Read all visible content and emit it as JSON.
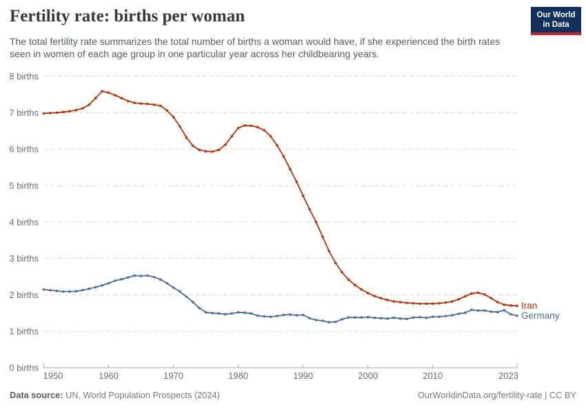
{
  "header": {
    "title": "Fertility rate: births per woman",
    "subtitle": "The total fertility rate summarizes the total number of births a woman would have, if she experienced the birth rates seen in women of each age group in one particular year across her childbearing years."
  },
  "logo": {
    "line1": "Our World",
    "line2": "in Data",
    "bg_color": "#12305c",
    "stripe_color": "#c2262e"
  },
  "chart_data": {
    "type": "line",
    "title": "Fertility rate: births per woman",
    "xlabel": "",
    "ylabel": "births",
    "xlim": [
      1950,
      2023
    ],
    "ylim": [
      0,
      8
    ],
    "grid": "horizontal-dashed",
    "legend_position": "line-end-labels",
    "x_ticks": {
      "years": [
        1950,
        1960,
        1970,
        1980,
        1990,
        2000,
        2010,
        2023
      ],
      "labels": [
        "1950",
        "1960",
        "1970",
        "1980",
        "1990",
        "2000",
        "2010",
        "2023"
      ]
    },
    "y_ticks": {
      "values": [
        0,
        1,
        2,
        3,
        4,
        5,
        6,
        7,
        8
      ],
      "labels": [
        "0 births",
        "1 births",
        "2 births",
        "3 births",
        "4 births",
        "5 births",
        "6 births",
        "7 births",
        "8 births"
      ]
    },
    "x": [
      1950,
      1951,
      1952,
      1953,
      1954,
      1955,
      1956,
      1957,
      1958,
      1959,
      1960,
      1961,
      1962,
      1963,
      1964,
      1965,
      1966,
      1967,
      1968,
      1969,
      1970,
      1971,
      1972,
      1973,
      1974,
      1975,
      1976,
      1977,
      1978,
      1979,
      1980,
      1981,
      1982,
      1983,
      1984,
      1985,
      1986,
      1987,
      1988,
      1989,
      1990,
      1991,
      1992,
      1993,
      1994,
      1995,
      1996,
      1997,
      1998,
      1999,
      2000,
      2001,
      2002,
      2003,
      2004,
      2005,
      2006,
      2007,
      2008,
      2009,
      2010,
      2011,
      2012,
      2013,
      2014,
      2015,
      2016,
      2017,
      2018,
      2019,
      2020,
      2021,
      2022,
      2023
    ],
    "series": [
      {
        "name": "Iran",
        "color": "#b13507",
        "values": [
          6.98,
          6.99,
          7.0,
          7.02,
          7.04,
          7.07,
          7.12,
          7.22,
          7.4,
          7.59,
          7.55,
          7.48,
          7.4,
          7.32,
          7.27,
          7.25,
          7.24,
          7.22,
          7.19,
          7.06,
          6.88,
          6.62,
          6.32,
          6.09,
          5.98,
          5.94,
          5.93,
          5.98,
          6.12,
          6.35,
          6.58,
          6.65,
          6.64,
          6.6,
          6.52,
          6.35,
          6.1,
          5.8,
          5.45,
          5.1,
          4.72,
          4.35,
          4.0,
          3.6,
          3.2,
          2.88,
          2.62,
          2.42,
          2.27,
          2.15,
          2.05,
          1.97,
          1.91,
          1.86,
          1.82,
          1.8,
          1.78,
          1.77,
          1.76,
          1.76,
          1.76,
          1.77,
          1.79,
          1.82,
          1.88,
          1.96,
          2.04,
          2.06,
          2.01,
          1.91,
          1.8,
          1.73,
          1.71,
          1.7
        ]
      },
      {
        "name": "Germany",
        "color": "#4c6a9c",
        "values": [
          2.15,
          2.13,
          2.11,
          2.09,
          2.09,
          2.1,
          2.13,
          2.17,
          2.21,
          2.26,
          2.32,
          2.39,
          2.43,
          2.48,
          2.53,
          2.52,
          2.53,
          2.49,
          2.42,
          2.32,
          2.2,
          2.09,
          1.95,
          1.8,
          1.64,
          1.52,
          1.5,
          1.49,
          1.47,
          1.49,
          1.52,
          1.51,
          1.49,
          1.43,
          1.41,
          1.4,
          1.42,
          1.45,
          1.46,
          1.44,
          1.45,
          1.36,
          1.31,
          1.29,
          1.25,
          1.26,
          1.33,
          1.38,
          1.38,
          1.38,
          1.39,
          1.37,
          1.36,
          1.35,
          1.37,
          1.35,
          1.34,
          1.38,
          1.39,
          1.37,
          1.4,
          1.4,
          1.42,
          1.44,
          1.48,
          1.51,
          1.59,
          1.57,
          1.57,
          1.54,
          1.53,
          1.58,
          1.47,
          1.43
        ]
      }
    ],
    "style": {
      "gridline_color": "#d9d9d9",
      "axis_color": "#a0a0a0",
      "tick_label_color": "#6d6d6d"
    }
  },
  "footer": {
    "source_label": "Data source:",
    "source_text": " UN, World Population Prospects (2024)",
    "link_text": "OurWorldinData.org/fertility-rate | CC BY"
  }
}
